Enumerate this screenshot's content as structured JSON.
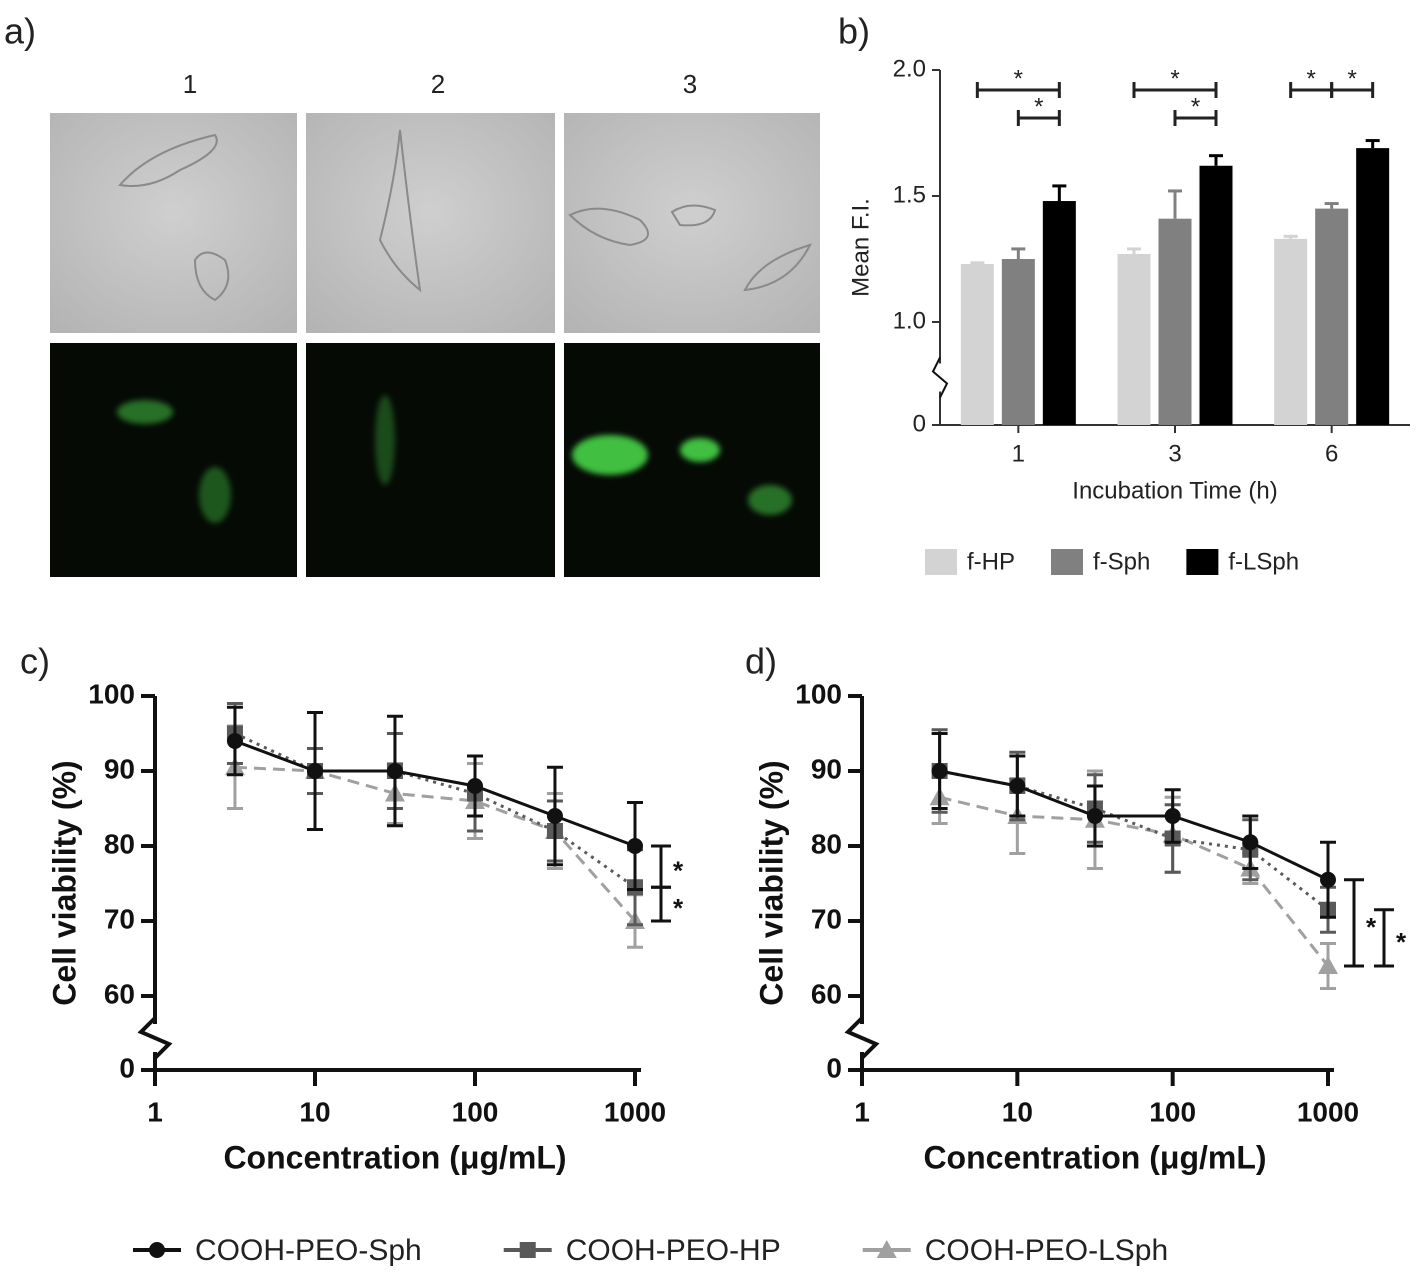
{
  "figure_a": {
    "panel_label": "a)",
    "columns": [
      "1",
      "2",
      "3"
    ]
  },
  "chart_data": [
    {
      "type": "bar",
      "panel_label": "b)",
      "ylabel": "Mean F.I.",
      "xlabel": "Incubation Time (h)",
      "categories": [
        "1",
        "3",
        "6"
      ],
      "series": [
        {
          "name": "f-HP",
          "color": "#d3d3d3",
          "values": [
            1.23,
            1.27,
            1.33
          ],
          "errors": [
            0.005,
            0.02,
            0.01
          ]
        },
        {
          "name": "f-Sph",
          "color": "#808080",
          "values": [
            1.25,
            1.41,
            1.45
          ],
          "errors": [
            0.04,
            0.11,
            0.02
          ]
        },
        {
          "name": "f-LSph",
          "color": "#000000",
          "values": [
            1.48,
            1.62,
            1.69
          ],
          "errors": [
            0.06,
            0.04,
            0.03
          ]
        }
      ],
      "ylim": [
        0,
        2.0
      ],
      "yticks": [
        0,
        {
          "value": 1.0,
          "label": "1.0"
        },
        1.5,
        {
          "value": 2.0,
          "label": "2.0"
        }
      ],
      "axis_break": true,
      "significance": [
        {
          "category": 0,
          "from": 0,
          "to": 2,
          "label": "*"
        },
        {
          "category": 0,
          "from": 1,
          "to": 2,
          "label": "*"
        },
        {
          "category": 1,
          "from": 0,
          "to": 2,
          "label": "*"
        },
        {
          "category": 1,
          "from": 1,
          "to": 2,
          "label": "*"
        },
        {
          "category": 2,
          "from": 0,
          "to": 1,
          "label": "*"
        },
        {
          "category": 2,
          "from": 1,
          "to": 2,
          "label": "*"
        }
      ],
      "legend": "bottom"
    },
    {
      "type": "line",
      "panel_label": "c)",
      "ylabel": "Cell viability (%)",
      "xlabel": "Concentration (μg/mL)",
      "x": [
        3.16,
        10,
        31.6,
        100,
        316,
        1000
      ],
      "xscale": "log",
      "xlim": [
        1,
        1000
      ],
      "xticks": [
        1,
        10,
        100,
        1000
      ],
      "ylim": [
        0,
        100
      ],
      "yticks": [
        0,
        60,
        70,
        80,
        90,
        100
      ],
      "axis_break": true,
      "series": [
        {
          "name": "COOH-PEO-Sph",
          "color": "#111111",
          "dash": "solid",
          "marker": "circle",
          "values": [
            94,
            90,
            90,
            88,
            84,
            80
          ],
          "errors": [
            4.5,
            7.8,
            7.3,
            4,
            6.5,
            5.8
          ]
        },
        {
          "name": "COOH-PEO-HP",
          "color": "#5a5a5a",
          "dash": "dotted",
          "marker": "square",
          "values": [
            95,
            90,
            90,
            87,
            82,
            74.5
          ],
          "errors": [
            4,
            3,
            5,
            5,
            4,
            5
          ]
        },
        {
          "name": "COOH-PEO-LSph",
          "color": "#a0a0a0",
          "dash": "dashed",
          "marker": "triangle",
          "values": [
            90.5,
            90,
            87,
            86,
            82,
            70
          ],
          "errors": [
            5.5,
            3,
            4,
            5,
            5,
            3.5
          ]
        }
      ],
      "significance": [
        {
          "from": 0,
          "to": 1,
          "label": "*"
        },
        {
          "from": 1,
          "to": 2,
          "label": "*"
        }
      ],
      "legend": "bottom"
    },
    {
      "type": "line",
      "panel_label": "d)",
      "ylabel": "Cell viability (%)",
      "xlabel": "Concentration (μg/mL)",
      "x": [
        3.16,
        10,
        31.6,
        100,
        316,
        1000
      ],
      "xscale": "log",
      "xlim": [
        1,
        1000
      ],
      "xticks": [
        1,
        10,
        100,
        1000
      ],
      "ylim": [
        0,
        100
      ],
      "yticks": [
        0,
        60,
        70,
        80,
        90,
        100
      ],
      "axis_break": true,
      "series": [
        {
          "color": "#111111",
          "dash": "solid",
          "marker": "circle",
          "values": [
            90,
            88,
            84,
            84,
            80.5,
            75.5
          ],
          "errors": [
            5,
            4,
            4,
            3.5,
            3.5,
            5
          ]
        },
        {
          "color": "#5a5a5a",
          "dash": "dotted",
          "marker": "square",
          "values": [
            90,
            88,
            85,
            81,
            79.5,
            71.5
          ],
          "errors": [
            5.5,
            4.5,
            4.5,
            4.5,
            4,
            3
          ]
        },
        {
          "color": "#a0a0a0",
          "dash": "dashed",
          "marker": "triangle",
          "values": [
            86.5,
            84,
            83.5,
            81.5,
            77,
            64
          ],
          "errors": [
            3.5,
            5,
            6.5,
            5,
            2,
            3
          ]
        }
      ],
      "significance": [
        {
          "from": 0,
          "to": 2,
          "label": "*"
        },
        {
          "from": 1,
          "to": 2,
          "label": "*"
        }
      ]
    }
  ]
}
